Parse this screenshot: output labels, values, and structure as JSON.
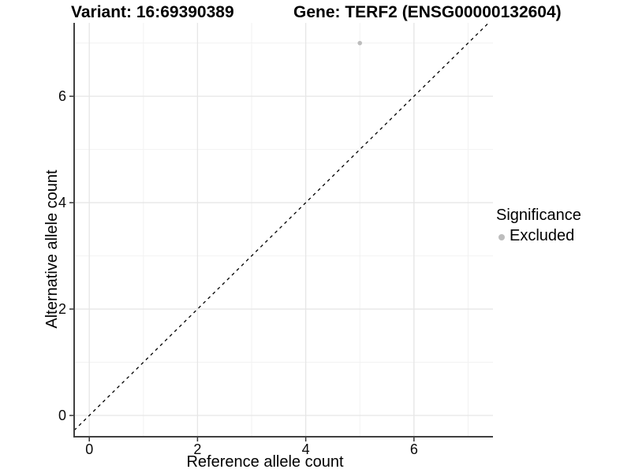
{
  "header": {
    "title_left": "Variant: 16:69390389",
    "title_right": "Gene: TERF2 (ENSG00000132604)"
  },
  "chart_data": {
    "type": "scatter",
    "title": "Variant: 16:69390389   Gene: TERF2 (ENSG00000132604)",
    "xlabel": "Reference allele count",
    "ylabel": "Alternative allele count",
    "xlim": [
      -0.28,
      7.46
    ],
    "ylim": [
      -0.4,
      7.38
    ],
    "x_ticks": [
      0,
      2,
      4,
      6
    ],
    "y_ticks": [
      0,
      2,
      4,
      6
    ],
    "x_minor_ticks": [
      1,
      3,
      5,
      7
    ],
    "y_minor_ticks": [
      1,
      3,
      5,
      7
    ],
    "grid": "on",
    "points": [
      {
        "x": 5,
        "y": 7,
        "significance": "Excluded"
      }
    ],
    "reference_line": {
      "slope": 1,
      "intercept": 0,
      "style": "dashed"
    },
    "legend": {
      "title": "Significance",
      "position": "right",
      "items": [
        {
          "label": "Excluded",
          "color": "#bdbdbd"
        }
      ]
    },
    "colors": {
      "point": "#bdbdbd",
      "grid_major": "#e6e6e6",
      "grid_minor": "#f2f2f2",
      "axis_line": "#404040",
      "tick_mark": "#333333",
      "reference_line": "#000000",
      "text": "#000000",
      "background": "#ffffff"
    }
  }
}
